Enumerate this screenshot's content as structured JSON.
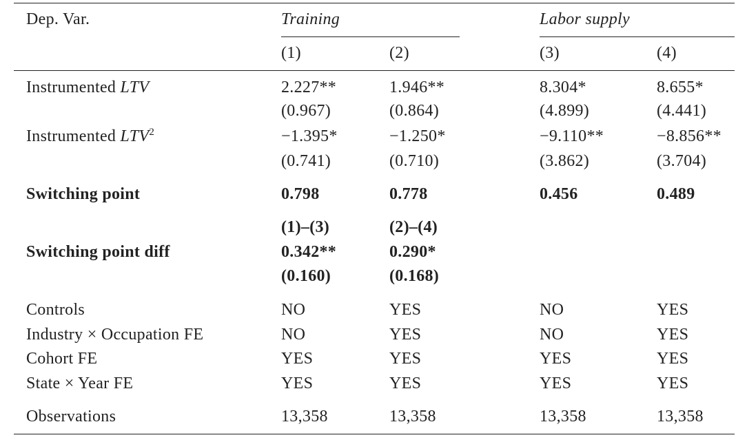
{
  "header": {
    "dep_var": "Dep. Var.",
    "groups": [
      "Training",
      "Labor supply"
    ],
    "columns": [
      "(1)",
      "(2)",
      "(3)",
      "(4)"
    ]
  },
  "rows": [
    {
      "label": {
        "text": "Instrumented ",
        "var": "LTV"
      },
      "cells": [
        "2.227**",
        "1.946**",
        "8.304*",
        "8.655*"
      ]
    },
    {
      "cells": [
        "(0.967)",
        "(0.864)",
        "(4.899)",
        "(4.441)"
      ]
    },
    {
      "label": {
        "text": "Instrumented ",
        "var": "LTV",
        "sup": "2"
      },
      "cells": [
        "−1.395*",
        "−1.250*",
        "−9.110**",
        "−8.856**"
      ]
    },
    {
      "cells": [
        "(0.741)",
        "(0.710)",
        "(3.862)",
        "(3.704)"
      ]
    },
    {
      "label": {
        "text": "Switching point"
      },
      "bold": true,
      "cells": [
        "0.798",
        "0.778",
        "0.456",
        "0.489"
      ]
    },
    {
      "bold": true,
      "cells": [
        "(1)–(3)",
        "(2)–(4)"
      ]
    },
    {
      "label": {
        "text": "Switching point diff"
      },
      "bold": true,
      "cells": [
        "0.342**",
        "0.290*"
      ]
    },
    {
      "bold": true,
      "cells": [
        "(0.160)",
        "(0.168)"
      ]
    },
    {
      "label": {
        "text": "Controls"
      },
      "cells": [
        "NO",
        "YES",
        "NO",
        "YES"
      ]
    },
    {
      "label": {
        "text": "Industry × Occupation FE"
      },
      "cells": [
        "NO",
        "YES",
        "NO",
        "YES"
      ]
    },
    {
      "label": {
        "text": "Cohort FE"
      },
      "cells": [
        "YES",
        "YES",
        "YES",
        "YES"
      ]
    },
    {
      "label": {
        "text": "State × Year FE"
      },
      "cells": [
        "YES",
        "YES",
        "YES",
        "YES"
      ]
    },
    {
      "label": {
        "text": "Observations"
      },
      "cells": [
        "13,358",
        "13,358",
        "13,358",
        "13,358"
      ]
    }
  ]
}
